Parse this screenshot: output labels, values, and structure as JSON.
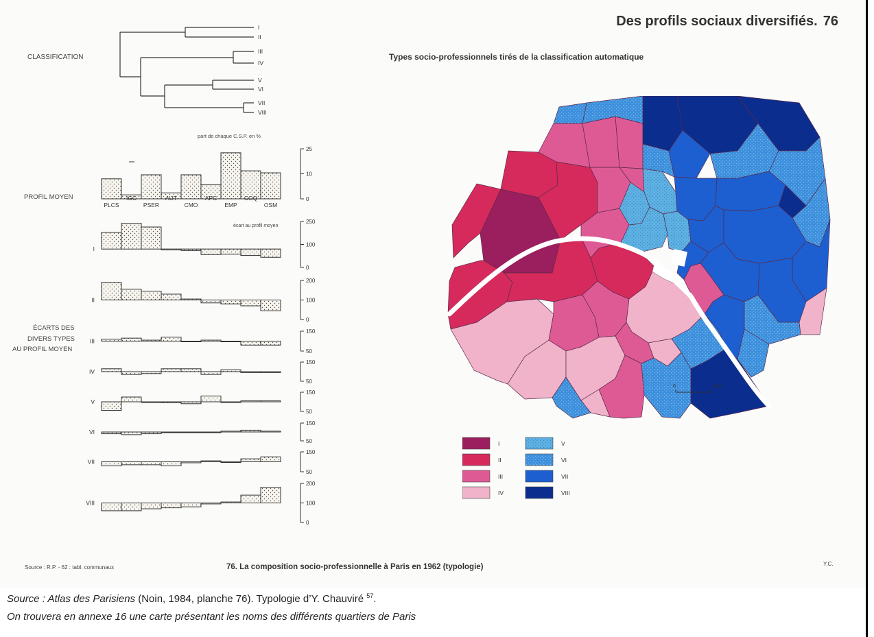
{
  "header": {
    "plate_title": "Des profils sociaux diversifiés.",
    "plate_number": "76",
    "map_title": "Types socio-professionnels tirés de la classification automatique"
  },
  "left": {
    "classification_label": "CLASSIFICATION",
    "dendrogram_leaves": [
      "I",
      "II",
      "III",
      "IV",
      "V",
      "VI",
      "VII",
      "VIII"
    ],
    "share_caption": "part de chaque C.S.P. en %",
    "profil_moyen_label": "PROFIL MOYEN",
    "csp_codes": [
      "PLCS",
      "IGC",
      "PSER",
      "AUT",
      "CMO",
      "APC",
      "EMP",
      "COQ",
      "OSM"
    ],
    "profil_moyen_values": [
      10,
      2,
      12,
      3,
      12,
      7,
      23,
      14,
      13
    ],
    "profil_axis_ticks": [
      "25",
      "10",
      "0"
    ],
    "ecart_caption": "écart au profil moyen",
    "ecarts_label_lines": [
      "ÉCARTS DES",
      "DIVERS TYPES",
      "AU PROFIL MOYEN"
    ]
  },
  "chart_data": {
    "type": "bar",
    "categories": [
      "PLCS",
      "IGC",
      "PSER",
      "AUT",
      "CMO",
      "APC",
      "EMP",
      "COQ",
      "OSM"
    ],
    "profil_moyen": [
      10,
      2,
      12,
      3,
      12,
      7,
      23,
      14,
      13
    ],
    "ylabel_profil": "part de chaque C.S.P. en %",
    "ylabel_ecarts": "écart au profil moyen",
    "baseline_ecarts": 100,
    "series": [
      {
        "name": "I",
        "values": [
          190,
          240,
          220,
          95,
          92,
          70,
          72,
          65,
          55
        ],
        "ticks": [
          "250",
          "100",
          "0"
        ],
        "ylim": [
          0,
          250
        ]
      },
      {
        "name": "II",
        "values": [
          190,
          155,
          145,
          130,
          105,
          85,
          80,
          70,
          45
        ],
        "ticks": [
          "200",
          "100",
          "0"
        ],
        "ylim": [
          0,
          200
        ]
      },
      {
        "name": "III",
        "values": [
          110,
          115,
          105,
          120,
          100,
          105,
          100,
          80,
          80
        ],
        "ticks": [
          "150",
          "50"
        ],
        "ylim": [
          50,
          150
        ]
      },
      {
        "name": "IV",
        "values": [
          115,
          85,
          90,
          115,
          115,
          85,
          110,
          95,
          95
        ],
        "ticks": [
          "150",
          "50"
        ],
        "ylim": [
          50,
          150
        ]
      },
      {
        "name": "V",
        "values": [
          55,
          125,
          100,
          95,
          90,
          130,
          100,
          105,
          105
        ],
        "ticks": [
          "150",
          "50"
        ],
        "ylim": [
          50,
          150
        ]
      },
      {
        "name": "VI",
        "values": [
          90,
          85,
          90,
          100,
          100,
          100,
          105,
          110,
          105
        ],
        "ticks": [
          "150",
          "50"
        ],
        "ylim": [
          50,
          150
        ]
      },
      {
        "name": "VII",
        "values": [
          80,
          85,
          85,
          80,
          95,
          105,
          100,
          115,
          125
        ],
        "ticks": [
          "150",
          "50"
        ],
        "ylim": [
          50,
          150
        ]
      },
      {
        "name": "VIII",
        "values": [
          60,
          60,
          70,
          75,
          80,
          95,
          105,
          140,
          180
        ],
        "ticks": [
          "200",
          "100",
          "0"
        ],
        "ylim": [
          0,
          200
        ]
      }
    ]
  },
  "map": {
    "scale_start": "0",
    "scale_end": "1km",
    "colors": {
      "I": "#9b1e5e",
      "II": "#d62a5c",
      "III": "#de5a95",
      "IV": "#f0b3c9",
      "V": "#5eb2e3",
      "VI": "#3b8fdc",
      "VII": "#1d5fd0",
      "VIII": "#0b2d8e"
    },
    "legend": [
      {
        "code": "I",
        "color": "#9b1e5e"
      },
      {
        "code": "II",
        "color": "#d62a5c"
      },
      {
        "code": "III",
        "color": "#de5a95"
      },
      {
        "code": "IV",
        "color": "#f0b3c9"
      },
      {
        "code": "V",
        "color": "#5eb2e3"
      },
      {
        "code": "VI",
        "color": "#3b8fdc"
      },
      {
        "code": "VII",
        "color": "#1d5fd0"
      },
      {
        "code": "VIII",
        "color": "#0b2d8e"
      }
    ]
  },
  "footer": {
    "source_small": "Source : R.P. - 62 : tabl. communaux",
    "caption": "76. La composition socio-professionnelle à Paris en 1962 (typologie)",
    "credit": "Y.C.",
    "line1_source_word": "Source : ",
    "line1_atlas": "Atlas des Parisiens",
    "line1_rest": " (Noin, 1984, planche 76). Typologie d’Y. Chauviré ",
    "line1_note": "57",
    "line1_end": ".",
    "line2": "On trouvera en annexe 16 une carte présentant les noms des différents quartiers de Paris"
  }
}
